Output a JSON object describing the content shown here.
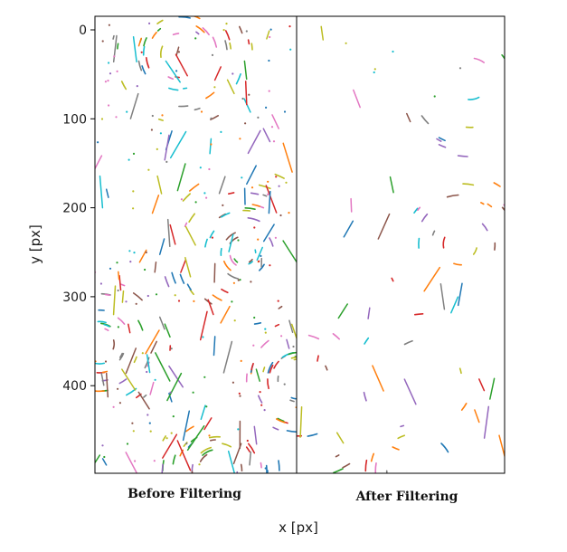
{
  "chart_data": {
    "type": "scatter",
    "xlabel": "x [px]",
    "ylabel": "y [px]",
    "y_inverted": true,
    "ylim": [
      0,
      500
    ],
    "yticks": [
      "0",
      "100",
      "200",
      "300",
      "400"
    ],
    "yticks_values": [
      0,
      100,
      200,
      300,
      400
    ],
    "grid": false,
    "panels": [
      {
        "caption": "Before Filtering",
        "segment_density": "high"
      },
      {
        "caption": "After Filtering",
        "segment_density": "low"
      }
    ],
    "palette": [
      "#1f77b4",
      "#ff7f0e",
      "#2ca02c",
      "#d62728",
      "#9467bd",
      "#8c564b",
      "#e377c2",
      "#7f7f7f",
      "#bcbd22",
      "#17becf"
    ]
  }
}
